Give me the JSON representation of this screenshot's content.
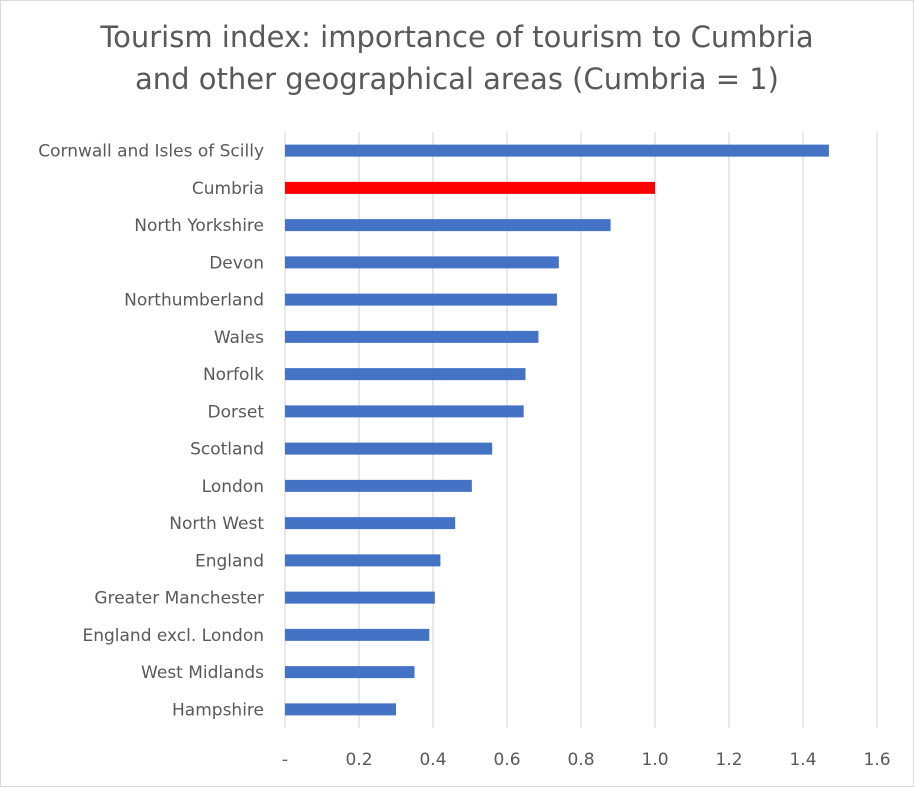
{
  "chart_data": {
    "type": "bar",
    "orientation": "horizontal",
    "title_line1": "Tourism index: importance of tourism to Cumbria",
    "title_line2": "and other geographical areas (Cumbria = 1)",
    "categories": [
      "Cornwall and Isles of Scilly",
      "Cumbria",
      "North Yorkshire",
      "Devon",
      "Northumberland",
      "Wales",
      "Norfolk",
      "Dorset",
      "Scotland",
      "London",
      "North West",
      "England",
      "Greater Manchester",
      "England excl. London",
      "West Midlands",
      "Hampshire"
    ],
    "values": [
      1.47,
      1.0,
      0.88,
      0.74,
      0.735,
      0.685,
      0.65,
      0.645,
      0.56,
      0.505,
      0.46,
      0.42,
      0.405,
      0.39,
      0.35,
      0.3
    ],
    "highlight_category": "Cumbria",
    "colors": {
      "bar": "#4472c4",
      "highlight": "#ff0000",
      "grid": "#d9d9d9",
      "text": "#595959"
    },
    "xlim": [
      0,
      1.6
    ],
    "x_ticks": [
      0,
      0.2,
      0.4,
      0.6,
      0.8,
      1.0,
      1.2,
      1.4,
      1.6
    ],
    "x_tick_labels": [
      "-",
      "0.2",
      "0.4",
      "0.6",
      "0.8",
      "1.0",
      "1.2",
      "1.4",
      "1.6"
    ],
    "grid": "vertical",
    "legend": "none",
    "xlabel": "",
    "ylabel": ""
  }
}
